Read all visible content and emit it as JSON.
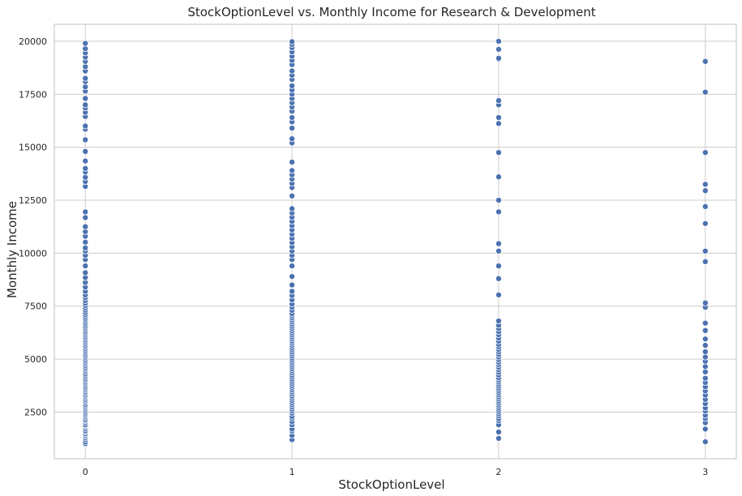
{
  "chart_data": {
    "type": "scatter",
    "title": "StockOptionLevel vs. Monthly Income for Research & Development",
    "xlabel": "StockOptionLevel",
    "ylabel": "Monthly Income",
    "xlim": [
      -0.15,
      3.15
    ],
    "ylim": [
      300,
      20800
    ],
    "xticks": [
      0,
      1,
      2,
      3
    ],
    "yticks": [
      2500,
      5000,
      7500,
      10000,
      12500,
      15000,
      17500,
      20000
    ],
    "grid": true,
    "legend": "none",
    "point_color": "#4c72b0",
    "series": [
      {
        "x": 0,
        "values": [
          1009,
          1091,
          1200,
          1281,
          1359,
          1420,
          1483,
          1569,
          1611,
          1702,
          1790,
          1859,
          1904,
          2007,
          2090,
          2133,
          2218,
          2290,
          2356,
          2428,
          2500,
          2580,
          2659,
          2730,
          2800,
          2870,
          2960,
          3030,
          3100,
          3180,
          3250,
          3310,
          3390,
          3460,
          3540,
          3610,
          3680,
          3760,
          3840,
          3910,
          3990,
          4060,
          4140,
          4220,
          4300,
          4390,
          4470,
          4540,
          4610,
          4690,
          4770,
          4850,
          4930,
          5010,
          5090,
          5170,
          5250,
          5330,
          5410,
          5490,
          5570,
          5650,
          5740,
          5820,
          5900,
          5980,
          6060,
          6150,
          6230,
          6310,
          6400,
          6480,
          6560,
          6650,
          6740,
          6830,
          6920,
          7010,
          7100,
          7200,
          7310,
          7420,
          7530,
          7640,
          7760,
          7900,
          8030,
          8200,
          8400,
          8620,
          8850,
          9080,
          9400,
          9700,
          9900,
          10100,
          10250,
          10520,
          10800,
          11020,
          11250,
          11680,
          11950,
          13150,
          13380,
          13580,
          13830,
          14000,
          14350,
          14800,
          15350,
          15850,
          16000,
          16450,
          16650,
          16850,
          17000,
          17300,
          17650,
          17850,
          18100,
          18250,
          18600,
          18800,
          19050,
          19250,
          19450,
          19650,
          19900
        ],
        "name": ""
      },
      {
        "x": 1,
        "values": [
          1200,
          1400,
          1600,
          1700,
          1900,
          2050,
          2200,
          2300,
          2450,
          2550,
          2650,
          2750,
          2850,
          2950,
          3050,
          3150,
          3250,
          3350,
          3450,
          3550,
          3650,
          3750,
          3850,
          3950,
          4050,
          4150,
          4250,
          4350,
          4450,
          4550,
          4650,
          4750,
          4850,
          4950,
          5050,
          5150,
          5250,
          5350,
          5450,
          5550,
          5650,
          5750,
          5850,
          5950,
          6050,
          6150,
          6250,
          6350,
          6450,
          6550,
          6650,
          6750,
          6850,
          6950,
          7050,
          7150,
          7300,
          7450,
          7600,
          7800,
          8000,
          8200,
          8500,
          8900,
          9400,
          9700,
          9900,
          10100,
          10300,
          10500,
          10700,
          10900,
          11100,
          11300,
          11500,
          11700,
          11900,
          12100,
          12700,
          13100,
          13300,
          13500,
          13700,
          13900,
          14300,
          15200,
          15400,
          15900,
          16200,
          16400,
          16700,
          16900,
          17100,
          17300,
          17500,
          17700,
          17900,
          18200,
          18400,
          18600,
          18900,
          19100,
          19300,
          19500,
          19700,
          19850,
          19980
        ],
        "name": ""
      },
      {
        "x": 2,
        "values": [
          1260,
          1560,
          1900,
          2100,
          2200,
          2320,
          2420,
          2520,
          2620,
          2720,
          2820,
          2920,
          3020,
          3120,
          3220,
          3320,
          3420,
          3520,
          3620,
          3720,
          3820,
          3920,
          4020,
          4120,
          4250,
          4380,
          4500,
          4620,
          4740,
          4860,
          4980,
          5100,
          5220,
          5340,
          5460,
          5580,
          5700,
          5850,
          6000,
          6150,
          6300,
          6450,
          6600,
          6800,
          8030,
          8800,
          9400,
          10100,
          10450,
          11950,
          12500,
          13600,
          14750,
          16120,
          16400,
          17000,
          17200,
          19150,
          19200,
          19620,
          20000
        ],
        "name": ""
      },
      {
        "x": 3,
        "values": [
          1100,
          1700,
          2000,
          2200,
          2350,
          2550,
          2700,
          2900,
          3100,
          3300,
          3500,
          3700,
          3900,
          4100,
          4400,
          4650,
          4900,
          5100,
          5350,
          5650,
          5950,
          6350,
          6700,
          7450,
          7650,
          9600,
          10100,
          11400,
          12200,
          12950,
          13250,
          14750,
          17600,
          19050
        ],
        "name": ""
      }
    ]
  }
}
